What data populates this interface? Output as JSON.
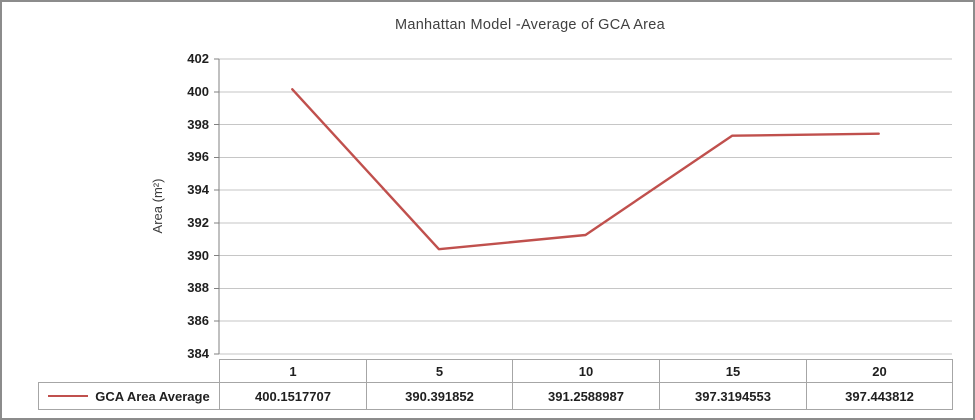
{
  "chart_data": {
    "type": "line",
    "title": "Manhattan Model -Average of GCA Area",
    "ylabel": "Area (m²)",
    "xlabel": "",
    "categories": [
      "1",
      "5",
      "10",
      "15",
      "20"
    ],
    "series": [
      {
        "name": "GCA Area Average",
        "color": "#C0504D",
        "values": [
          400.1517707,
          390.391852,
          391.2588987,
          397.3194553,
          397.443812
        ],
        "value_labels": [
          "400.1517707",
          "390.391852",
          "391.2588987",
          "397.3194553",
          "397.443812"
        ]
      }
    ],
    "ylim": [
      384,
      402
    ],
    "ytick_step": 2,
    "yticks": [
      402,
      400,
      398,
      396,
      394,
      392,
      390,
      388,
      386,
      384
    ],
    "grid": true,
    "legend_position": "data-table-left"
  },
  "colors": {
    "series": "#C0504D",
    "gridline": "#c6c6c6",
    "axis": "#808080",
    "table_border": "#a6a6a6",
    "frame_border": "#8c8c8c",
    "title_text": "#404040",
    "tick_text": "#1f1f1f"
  }
}
